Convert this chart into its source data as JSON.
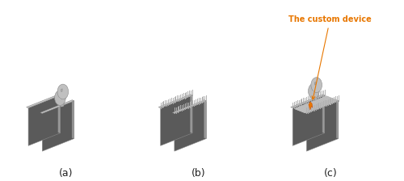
{
  "background_color": "#ffffff",
  "panel_labels": [
    "(a)",
    "(b)",
    "(c)"
  ],
  "panel_label_fontsize": 9,
  "annotation_text": "The custom device",
  "annotation_color": "#E87700",
  "annotation_fontsize": 7,
  "wall_dark": "#5a5a5a",
  "wall_light": "#c8c8c8",
  "wall_mid": "#9a9a9a",
  "pin_color": "#b0b0b0",
  "filament_color": "#c0c0c0",
  "filament_bg": "#e0e0e0",
  "orange_color": "#E87700"
}
